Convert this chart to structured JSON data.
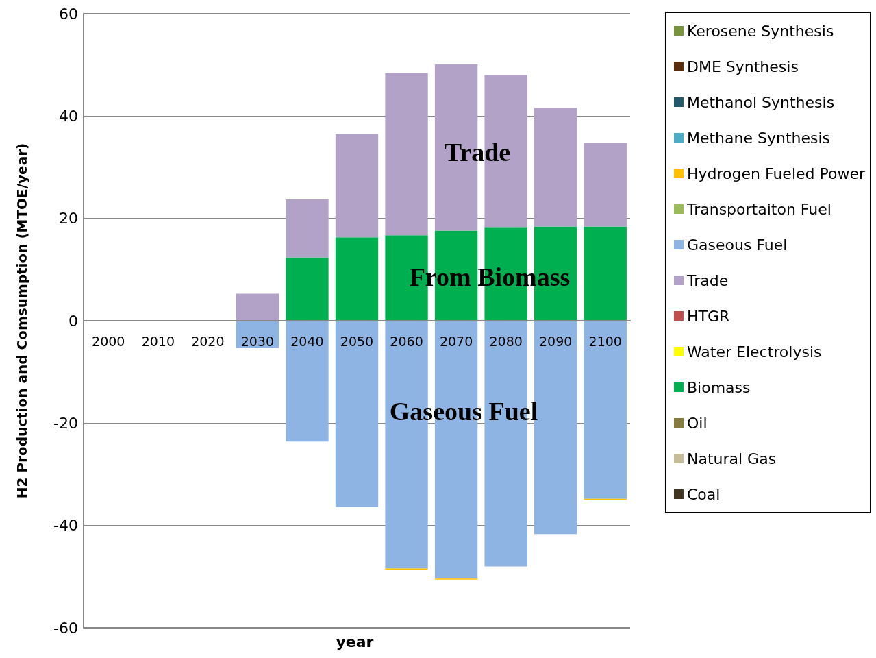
{
  "chart_data": {
    "type": "bar",
    "stacked": true,
    "xlabel": "year",
    "ylabel": "H2 Production and Comsumption (MTOE/year)",
    "categories": [
      "2000",
      "2010",
      "2020",
      "2030",
      "2040",
      "2050",
      "2060",
      "2070",
      "2080",
      "2090",
      "2100"
    ],
    "series": [
      {
        "name": "Coal",
        "color": "#403621",
        "values": [
          0,
          0,
          0,
          0,
          0,
          0,
          0,
          0,
          0,
          0,
          0
        ]
      },
      {
        "name": "Natural Gas",
        "color": "#c4bd97",
        "values": [
          0,
          0,
          0,
          0,
          0,
          0,
          0,
          0,
          0,
          0,
          0
        ]
      },
      {
        "name": "Oil",
        "color": "#847b3c",
        "values": [
          0,
          0,
          0,
          0,
          0,
          0,
          0,
          0,
          0,
          0,
          0
        ]
      },
      {
        "name": "Biomass",
        "color": "#00b050",
        "values": [
          0,
          0,
          0,
          0,
          12.4,
          16.3,
          16.7,
          17.6,
          18.3,
          18.4,
          18.4
        ]
      },
      {
        "name": "Water Electrolysis",
        "color": "#ffff00",
        "values": [
          0,
          0,
          0,
          0,
          0,
          0,
          0,
          0,
          0,
          0,
          0
        ]
      },
      {
        "name": "HTGR",
        "color": "#c0504d",
        "values": [
          0,
          0,
          0,
          0,
          0,
          0,
          0,
          0,
          0,
          0,
          0
        ]
      },
      {
        "name": "Trade",
        "color": "#b3a2c7",
        "values": [
          0,
          0,
          0,
          5.3,
          11.3,
          20.2,
          31.7,
          32.5,
          29.7,
          23.2,
          16.4
        ]
      },
      {
        "name": "Gaseous Fuel",
        "color": "#8db4e2",
        "values": [
          0,
          0,
          0,
          -5.3,
          -23.6,
          -36.4,
          -48.4,
          -50.4,
          -48,
          -41.7,
          -34.8
        ]
      },
      {
        "name": "Transportaiton Fuel",
        "color": "#9bbb59",
        "values": [
          0,
          0,
          0,
          0,
          0,
          0,
          0,
          0,
          0,
          0,
          0
        ]
      },
      {
        "name": "Hydrogen Fueled Power",
        "color": "#ffc000",
        "values": [
          0,
          0,
          0,
          0,
          0,
          0,
          -0.2,
          -0.2,
          0,
          0,
          -0.2
        ]
      },
      {
        "name": "Methane Synthesis",
        "color": "#4bacc6",
        "values": [
          0,
          0,
          0,
          0,
          0,
          0,
          0,
          0,
          0,
          0,
          0
        ]
      },
      {
        "name": "Methanol Synthesis",
        "color": "#215968",
        "values": [
          0,
          0,
          0,
          0,
          0,
          0,
          0,
          0,
          0,
          0,
          0
        ]
      },
      {
        "name": "DME Synthesis",
        "color": "#5a2d0a",
        "values": [
          0,
          0,
          0,
          0,
          0,
          0,
          0,
          0,
          0,
          0,
          0
        ]
      },
      {
        "name": "Kerosene Synthesis",
        "color": "#77933c",
        "values": [
          0,
          0,
          0,
          0,
          0,
          0,
          0,
          0,
          0,
          0,
          0
        ]
      }
    ],
    "ylim": [
      -60,
      60
    ],
    "yticks": [
      -60,
      -40,
      -20,
      0,
      20,
      40,
      60
    ],
    "grid": "y",
    "legend": "right",
    "annotations": [
      "Trade",
      "From Biomass",
      "Gaseous Fuel"
    ]
  }
}
